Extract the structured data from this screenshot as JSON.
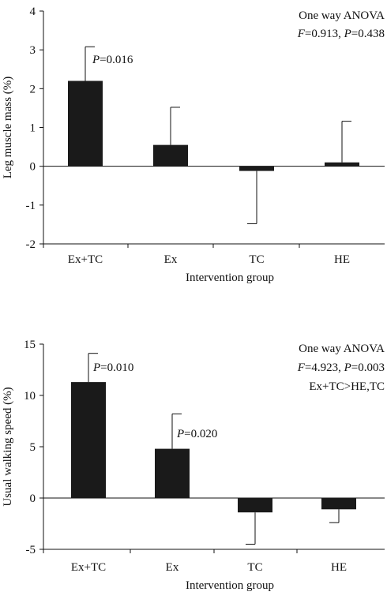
{
  "chart_data": [
    {
      "type": "bar",
      "categories": [
        "Ex+TC",
        "Ex",
        "TC",
        "HE"
      ],
      "values": [
        2.2,
        0.55,
        -0.12,
        0.1
      ],
      "error_bars": [
        {
          "value": 3.08,
          "direction": "up"
        },
        {
          "value": 1.52,
          "direction": "up"
        },
        {
          "value": -1.48,
          "direction": "down"
        },
        {
          "value": 1.16,
          "direction": "up"
        }
      ],
      "bar_annotations": [
        {
          "category": "Ex+TC",
          "p_label": "P",
          "p_value": "=0.016"
        }
      ],
      "xlabel": "Intervention group",
      "ylabel": "Leg muscle mass (%)",
      "ylim": [
        -2,
        4
      ],
      "yticks": [
        "4",
        "3",
        "2",
        "1",
        "0",
        "-1",
        "-2"
      ],
      "stats_box": {
        "line1": "One way ANOVA",
        "f_label": "F",
        "f_value": "=0.913, ",
        "p_label": "P",
        "p_value": "=0.438"
      },
      "grid": false,
      "bar_color": "#1a1a1a"
    },
    {
      "type": "bar",
      "categories": [
        "Ex+TC",
        "Ex",
        "TC",
        "HE"
      ],
      "values": [
        11.3,
        4.8,
        -1.4,
        -1.1
      ],
      "error_bars": [
        {
          "value": 14.1,
          "direction": "up"
        },
        {
          "value": 8.2,
          "direction": "up"
        },
        {
          "value": -4.5,
          "direction": "down"
        },
        {
          "value": -2.4,
          "direction": "down"
        }
      ],
      "bar_annotations": [
        {
          "category": "Ex+TC",
          "p_label": "P",
          "p_value": "=0.010"
        },
        {
          "category": "Ex",
          "p_label": "P",
          "p_value": "=0.020"
        }
      ],
      "xlabel": "Intervention group",
      "ylabel": "Usual walking speed (%)",
      "ylim": [
        -5,
        15
      ],
      "yticks": [
        "15",
        "10",
        "5",
        "0",
        "-5"
      ],
      "stats_box": {
        "line1": "One way ANOVA",
        "f_label": "F",
        "f_value": "=4.923, ",
        "p_label": "P",
        "p_value": "=0.003",
        "line3": "Ex+TC>HE,TC"
      },
      "grid": false,
      "bar_color": "#1a1a1a"
    }
  ]
}
